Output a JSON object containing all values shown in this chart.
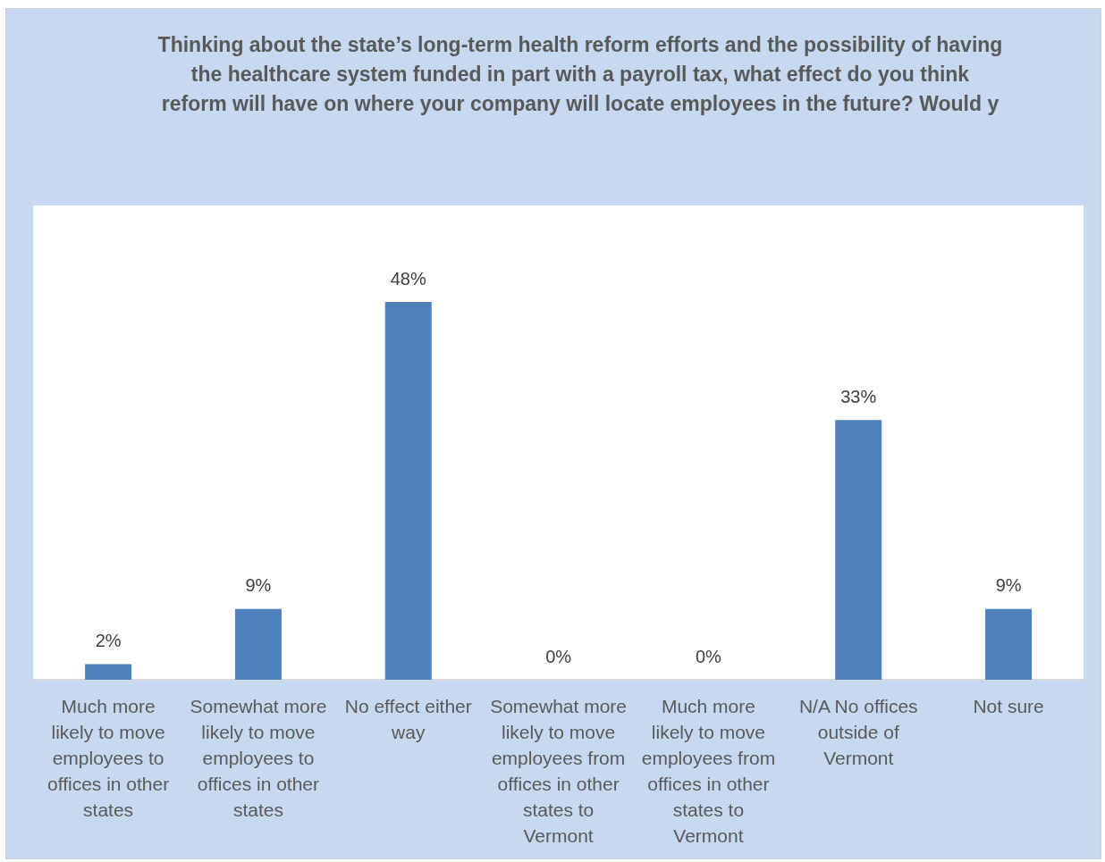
{
  "chart_data": {
    "type": "bar",
    "title": "Thinking about the state’s long-term health reform efforts and the possibility of having\nthe healthcare system funded in part with a payroll tax, what effect do you think\nreform will have on where your company will locate employees in the future? Would y",
    "categories": [
      "Much more likely to move employees to offices in other states",
      "Somewhat more likely to move employees to offices in other states",
      "No effect either way",
      "Somewhat more likely to move employees from offices in other states to Vermont",
      "Much more likely to move employees from offices in other states to Vermont",
      "N/A No offices outside of Vermont",
      "Not sure"
    ],
    "values": [
      2,
      9,
      48,
      0,
      0,
      33,
      9
    ],
    "value_labels": [
      "2%",
      "9%",
      "48%",
      "0%",
      "0%",
      "33%",
      "9%"
    ],
    "color": "#4f81bd",
    "tick_labels": "x"
  }
}
